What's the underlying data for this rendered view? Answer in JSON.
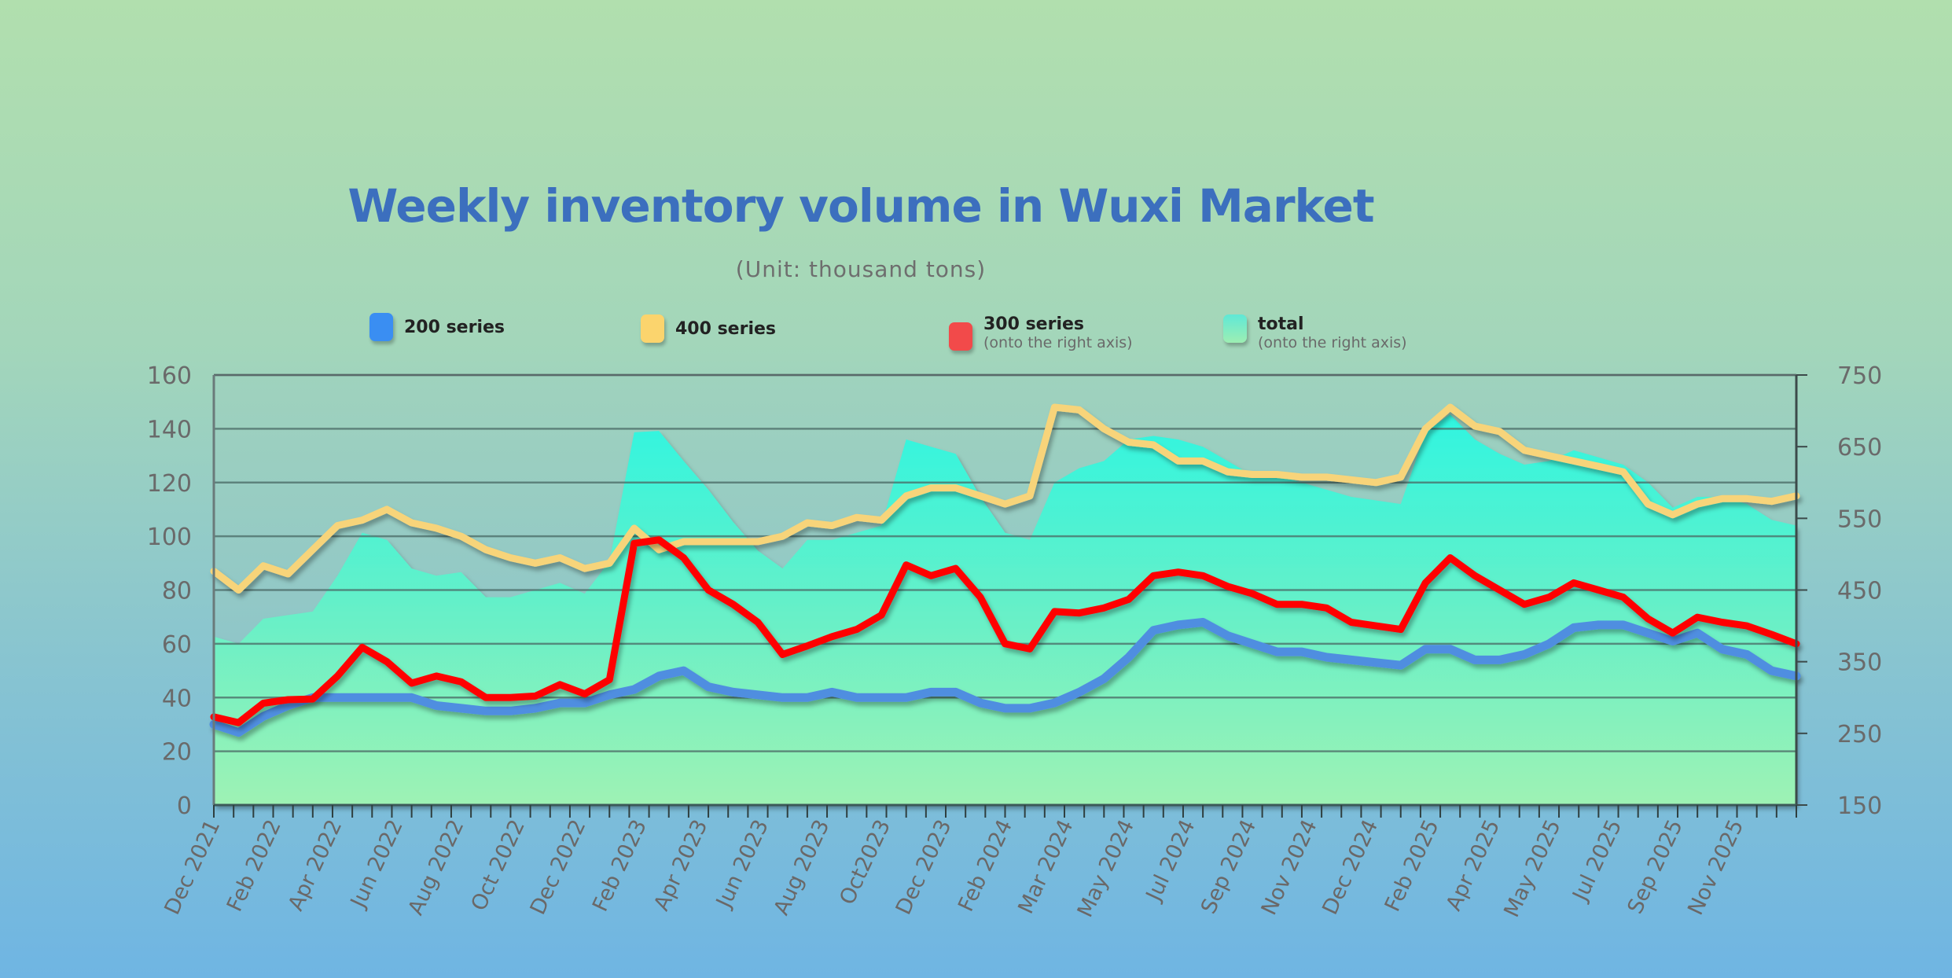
{
  "title": "Weekly inventory volume in Wuxi Market",
  "subtitle": "(Unit: thousand tons)",
  "legend": [
    {
      "label": "200 series",
      "note": "",
      "color": "#3a8ef2"
    },
    {
      "label": "400 series",
      "note": "",
      "color": "#fbd46d"
    },
    {
      "label": "300 series",
      "note": "(onto the right axis)",
      "color": "#f24a4a"
    },
    {
      "label": "total",
      "note": "(onto the right axis)",
      "color": "#5fe8d6"
    }
  ],
  "chart_data": {
    "type": "line",
    "title": "Weekly inventory volume in Wuxi Market",
    "subtitle": "(Unit: thousand tons)",
    "x_tick_labels": [
      "Dec 2021",
      "Feb 2022",
      "Apr 2022",
      "Jun 2022",
      "Aug 2022",
      "Oct 2022",
      "Dec 2022",
      "Feb 2023",
      "Apr 2023",
      "Jun 2023",
      "Aug 2023",
      "Oct2023",
      "Dec 2023",
      "Feb 2024",
      "Mar 2024",
      "May 2024",
      "Jul 2024",
      "Sep 2024",
      "Nov 2024",
      "Dec 2024",
      "Feb 2025",
      "Apr 2025",
      "May 2025",
      "Jul 2025",
      "Sep 2025",
      "Nov 2025"
    ],
    "y_left": {
      "min": 0,
      "max": 160,
      "ticks": [
        0,
        20,
        40,
        60,
        80,
        100,
        120,
        140,
        160
      ]
    },
    "y_right": {
      "min": 150,
      "max": 750,
      "ticks": [
        150,
        250,
        350,
        450,
        550,
        650,
        750
      ]
    },
    "grid": true,
    "legend_position": "top",
    "series": [
      {
        "name": "200 series",
        "axis": "left",
        "type": "line",
        "color": "#4f8ee0",
        "values": [
          30,
          27,
          33,
          37,
          40,
          40,
          40,
          40,
          40,
          37,
          36,
          35,
          35,
          36,
          38,
          38,
          41,
          43,
          48,
          50,
          44,
          42,
          41,
          40,
          40,
          42,
          40,
          40,
          40,
          42,
          42,
          38,
          36,
          36,
          38,
          42,
          47,
          55,
          65,
          67,
          68,
          63,
          60,
          57,
          57,
          55,
          54,
          53,
          52,
          58,
          58,
          54,
          54,
          56,
          60,
          66,
          67,
          67,
          64,
          61,
          64,
          58,
          56,
          50,
          48
        ]
      },
      {
        "name": "400 series",
        "axis": "left",
        "type": "line",
        "color": "#f7d47a",
        "values": [
          87,
          80,
          89,
          86,
          95,
          104,
          106,
          110,
          105,
          103,
          100,
          95,
          92,
          90,
          92,
          88,
          90,
          103,
          95,
          98,
          98,
          98,
          98,
          100,
          105,
          104,
          107,
          106,
          115,
          118,
          118,
          115,
          112,
          115,
          148,
          147,
          140,
          135,
          134,
          128,
          128,
          124,
          123,
          123,
          122,
          122,
          121,
          120,
          122,
          140,
          148,
          141,
          139,
          132,
          130,
          128,
          126,
          124,
          112,
          108,
          112,
          114,
          114,
          113,
          115
        ]
      },
      {
        "name": "300 series",
        "axis": "right",
        "type": "line",
        "color": "#ff0000",
        "values": [
          273,
          265,
          292,
          297,
          298,
          330,
          370,
          350,
          320,
          330,
          322,
          300,
          300,
          302,
          318,
          305,
          325,
          515,
          520,
          495,
          450,
          430,
          405,
          360,
          372,
          385,
          395,
          415,
          485,
          470,
          480,
          440,
          375,
          368,
          420,
          418,
          425,
          437,
          470,
          475,
          470,
          455,
          445,
          430,
          430,
          425,
          405,
          400,
          395,
          460,
          495,
          470,
          450,
          430,
          440,
          460,
          450,
          440,
          410,
          390,
          412,
          405,
          400,
          388,
          375
        ]
      },
      {
        "name": "total",
        "axis": "right",
        "type": "area",
        "color": "#3ef5dc",
        "values": [
          385,
          375,
          410,
          415,
          420,
          470,
          530,
          520,
          480,
          470,
          475,
          440,
          440,
          450,
          460,
          445,
          490,
          670,
          672,
          630,
          590,
          545,
          505,
          480,
          520,
          520,
          530,
          540,
          660,
          650,
          640,
          580,
          530,
          520,
          600,
          620,
          630,
          660,
          665,
          660,
          650,
          630,
          610,
          610,
          600,
          590,
          580,
          575,
          570,
          670,
          695,
          660,
          640,
          625,
          630,
          645,
          635,
          625,
          600,
          565,
          580,
          580,
          570,
          548,
          540
        ]
      }
    ]
  }
}
